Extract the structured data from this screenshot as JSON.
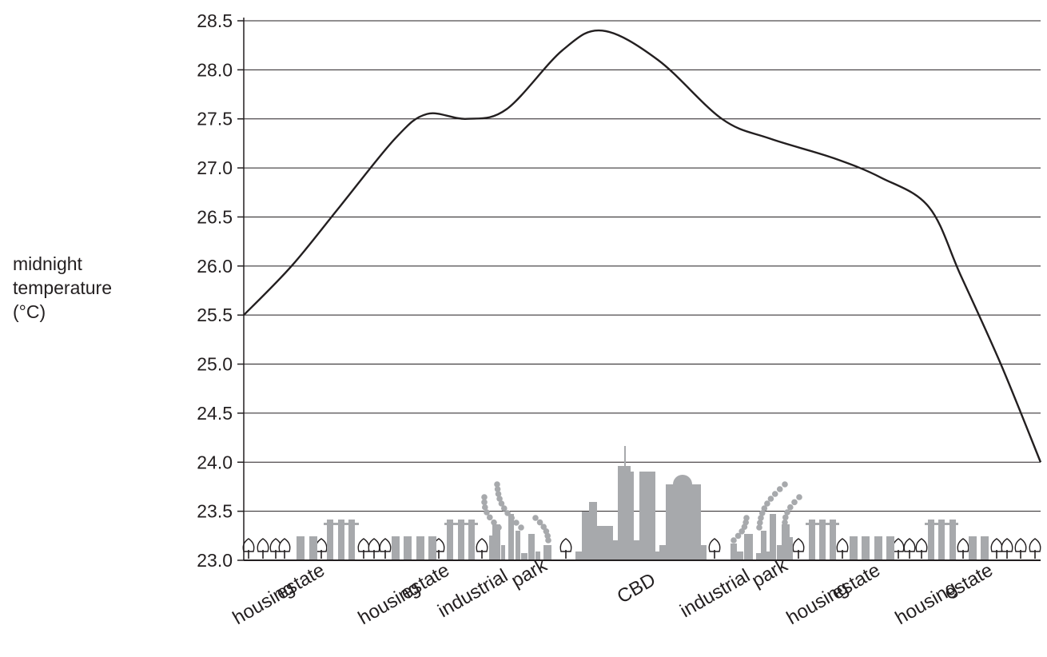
{
  "chart_data": {
    "type": "line",
    "title": "",
    "ylabel_lines": [
      "midnight",
      "temperature",
      "(°C)"
    ],
    "xlabel": "",
    "ylim": [
      23.0,
      28.5
    ],
    "yticks": [
      "23.0",
      "23.5",
      "24.0",
      "24.5",
      "25.0",
      "25.5",
      "26.0",
      "26.5",
      "27.0",
      "27.5",
      "28.0",
      "28.5"
    ],
    "grid": true,
    "zones": [
      {
        "lines": [
          "housing",
          "estate"
        ]
      },
      {
        "lines": [
          "housing",
          "estate"
        ]
      },
      {
        "lines": [
          "industrial",
          "park"
        ]
      },
      {
        "lines": [
          "CBD"
        ]
      },
      {
        "lines": [
          "industrial",
          "park"
        ]
      },
      {
        "lines": [
          "housing",
          "estate"
        ]
      },
      {
        "lines": [
          "housing",
          "estate"
        ]
      }
    ],
    "series": [
      {
        "x": [
          0,
          0.06,
          0.12,
          0.19,
          0.23,
          0.28,
          0.33,
          0.4,
          0.45,
          0.52,
          0.6,
          0.66,
          0.74,
          0.8,
          0.86,
          0.9,
          0.95,
          1.0
        ],
        "values": [
          25.5,
          26.0,
          26.6,
          27.3,
          27.55,
          27.5,
          27.6,
          28.2,
          28.4,
          28.1,
          27.5,
          27.3,
          27.1,
          26.9,
          26.6,
          25.9,
          25.0,
          24.0
        ]
      }
    ],
    "colors": {
      "line": "#231f20",
      "grid": "#231f20",
      "illustration": "#a7a9ac"
    }
  }
}
